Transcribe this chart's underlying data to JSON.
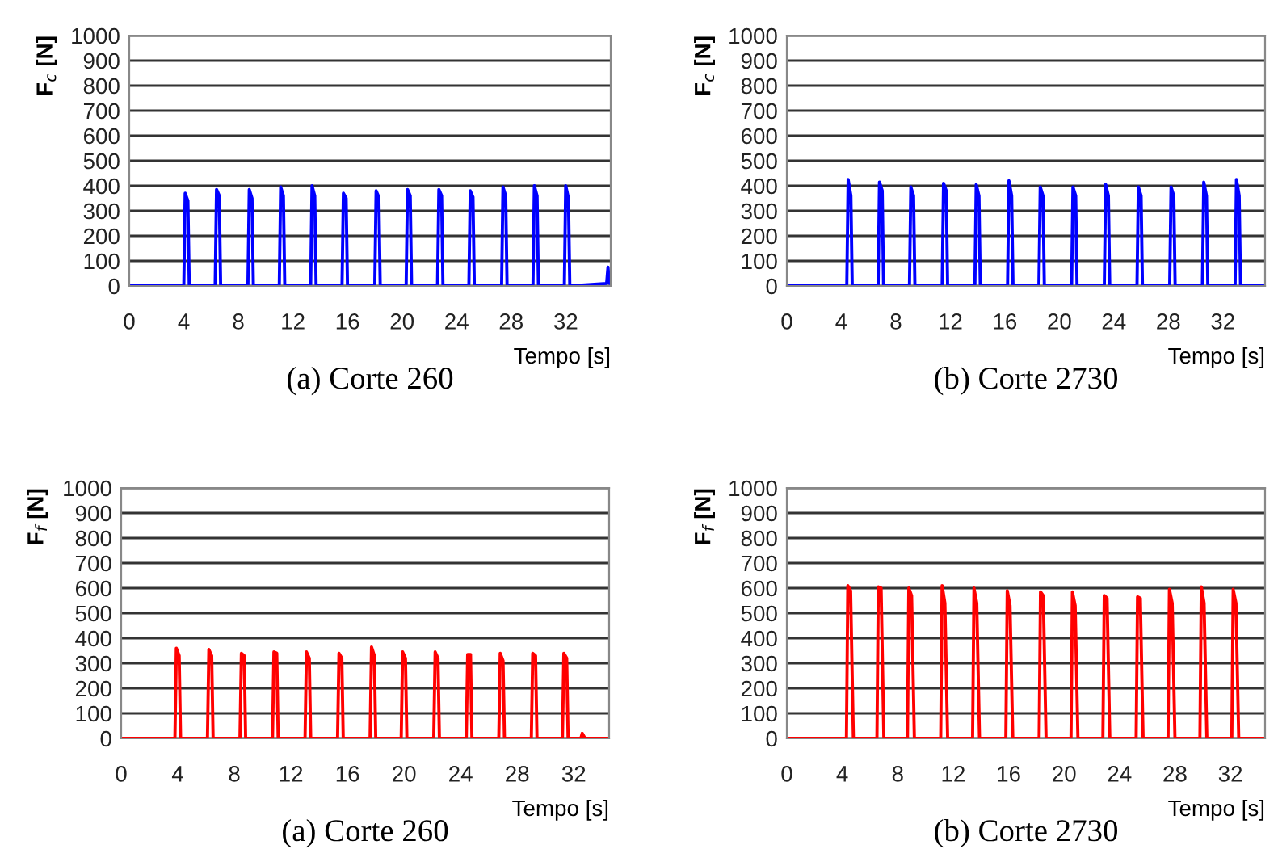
{
  "chart_data": [
    {
      "type": "line",
      "title": "(a) Corte 260",
      "xlabel": "Tempo [s]",
      "ylabel": "F$_{c}$ [N]",
      "xlim": [
        0,
        35.3
      ],
      "xticks": [
        0,
        4,
        8,
        12,
        16,
        20,
        24,
        28,
        32
      ],
      "ylim": [
        0,
        1000
      ],
      "yticks": [
        0,
        100,
        200,
        300,
        400,
        500,
        600,
        700,
        800,
        900,
        1000
      ],
      "grid": "y",
      "series": [
        {
          "color": "#0000ff",
          "x": [
            0,
            4.0,
            4.1,
            4.3,
            4.4,
            6.3,
            6.4,
            6.6,
            6.7,
            8.7,
            8.8,
            9.0,
            9.1,
            11.0,
            11.1,
            11.3,
            11.4,
            13.3,
            13.4,
            13.6,
            13.7,
            15.6,
            15.7,
            15.9,
            16.0,
            18.0,
            18.1,
            18.3,
            18.4,
            20.3,
            20.4,
            20.6,
            20.7,
            22.6,
            22.7,
            22.9,
            23.0,
            24.9,
            25.0,
            25.2,
            25.3,
            27.3,
            27.4,
            27.6,
            27.7,
            29.6,
            29.7,
            29.9,
            30.0,
            31.9,
            32.0,
            32.2,
            32.3,
            35.0,
            35.1,
            35.2,
            35.3
          ],
          "values": [
            0,
            0,
            370,
            340,
            0,
            0,
            385,
            360,
            0,
            0,
            385,
            350,
            0,
            0,
            395,
            360,
            0,
            0,
            400,
            360,
            0,
            0,
            370,
            350,
            0,
            0,
            380,
            355,
            0,
            0,
            385,
            360,
            0,
            0,
            385,
            360,
            0,
            0,
            380,
            355,
            0,
            0,
            395,
            360,
            0,
            0,
            400,
            360,
            0,
            0,
            400,
            350,
            0,
            10,
            75,
            10,
            30
          ]
        }
      ]
    },
    {
      "type": "line",
      "title": "(b) Corte 2730",
      "xlabel": "Tempo [s]",
      "ylabel": "F$_{c}$ [N]",
      "xlim": [
        0,
        35.1
      ],
      "xticks": [
        0,
        4,
        8,
        12,
        16,
        20,
        24,
        28,
        32
      ],
      "ylim": [
        0,
        1000
      ],
      "yticks": [
        0,
        100,
        200,
        300,
        400,
        500,
        600,
        700,
        800,
        900,
        1000
      ],
      "grid": "y",
      "series": [
        {
          "color": "#0000ff",
          "x": [
            0,
            4.4,
            4.5,
            4.7,
            4.8,
            6.7,
            6.8,
            7.0,
            7.1,
            9.0,
            9.1,
            9.3,
            9.4,
            11.4,
            11.5,
            11.7,
            11.8,
            13.8,
            13.9,
            14.1,
            14.2,
            16.2,
            16.3,
            16.5,
            16.6,
            18.5,
            18.6,
            18.8,
            18.9,
            20.9,
            21.0,
            21.2,
            21.3,
            23.3,
            23.4,
            23.6,
            23.7,
            25.7,
            25.8,
            26.0,
            26.1,
            28.1,
            28.2,
            28.4,
            28.5,
            30.5,
            30.6,
            30.8,
            30.9,
            32.9,
            33.0,
            33.2,
            33.3,
            35.1
          ],
          "values": [
            0,
            0,
            425,
            360,
            0,
            0,
            415,
            380,
            0,
            0,
            395,
            360,
            0,
            0,
            410,
            380,
            0,
            0,
            405,
            360,
            0,
            0,
            420,
            360,
            0,
            0,
            395,
            360,
            0,
            0,
            395,
            360,
            0,
            0,
            405,
            360,
            0,
            0,
            395,
            360,
            0,
            0,
            395,
            360,
            0,
            0,
            415,
            360,
            0,
            0,
            425,
            360,
            0,
            0
          ]
        }
      ]
    },
    {
      "type": "line",
      "title": "(a) Corte 260",
      "xlabel": "Tempo [s]",
      "ylabel": "F$_{f}$ [N]",
      "xlim": [
        0,
        34.5
      ],
      "xticks": [
        0,
        4,
        8,
        12,
        16,
        20,
        24,
        28,
        32
      ],
      "ylim": [
        0,
        1000
      ],
      "yticks": [
        0,
        100,
        200,
        300,
        400,
        500,
        600,
        700,
        800,
        900,
        1000
      ],
      "grid": "y",
      "series": [
        {
          "color": "#ff0000",
          "x": [
            0,
            3.8,
            3.9,
            4.1,
            4.2,
            6.1,
            6.2,
            6.4,
            6.5,
            8.4,
            8.5,
            8.7,
            8.8,
            10.7,
            10.8,
            11.0,
            11.1,
            13.0,
            13.1,
            13.3,
            13.4,
            15.3,
            15.4,
            15.6,
            15.7,
            17.6,
            17.7,
            17.9,
            18.0,
            19.8,
            19.9,
            20.1,
            20.2,
            22.1,
            22.2,
            22.4,
            22.5,
            24.4,
            24.5,
            24.7,
            24.8,
            26.7,
            26.8,
            27.0,
            27.1,
            29.0,
            29.1,
            29.3,
            29.4,
            31.2,
            31.3,
            31.5,
            31.6,
            32.5,
            32.6,
            32.8,
            34.5
          ],
          "values": [
            0,
            0,
            360,
            330,
            0,
            0,
            355,
            330,
            0,
            0,
            340,
            330,
            0,
            0,
            345,
            340,
            0,
            0,
            345,
            320,
            0,
            0,
            340,
            320,
            0,
            0,
            365,
            330,
            0,
            0,
            345,
            320,
            0,
            0,
            345,
            320,
            0,
            0,
            335,
            335,
            0,
            0,
            340,
            310,
            0,
            0,
            340,
            330,
            0,
            0,
            340,
            320,
            0,
            0,
            20,
            0,
            0
          ]
        }
      ]
    },
    {
      "type": "line",
      "title": "(b) Corte 2730",
      "xlabel": "Tempo [s]",
      "ylabel": "F$_{f}$ [N]",
      "xlim": [
        0,
        34.5
      ],
      "xticks": [
        0,
        4,
        8,
        12,
        16,
        20,
        24,
        28,
        32
      ],
      "ylim": [
        0,
        1000
      ],
      "yticks": [
        0,
        100,
        200,
        300,
        400,
        500,
        600,
        700,
        800,
        900,
        1000
      ],
      "grid": "y",
      "series": [
        {
          "color": "#ff0000",
          "x": [
            0,
            4.3,
            4.4,
            4.6,
            4.8,
            6.5,
            6.6,
            6.8,
            7.0,
            8.7,
            8.8,
            9.0,
            9.2,
            11.1,
            11.2,
            11.4,
            11.6,
            13.4,
            13.5,
            13.7,
            13.9,
            15.8,
            15.9,
            16.1,
            16.3,
            18.2,
            18.3,
            18.5,
            18.7,
            20.5,
            20.6,
            20.8,
            21.0,
            22.8,
            22.9,
            23.1,
            23.3,
            25.2,
            25.3,
            25.5,
            25.7,
            27.5,
            27.6,
            27.8,
            28.0,
            29.8,
            29.9,
            30.1,
            30.3,
            32.1,
            32.2,
            32.4,
            32.6,
            34.5
          ],
          "values": [
            0,
            0,
            610,
            590,
            0,
            0,
            605,
            600,
            0,
            0,
            600,
            570,
            0,
            0,
            610,
            540,
            0,
            0,
            600,
            540,
            0,
            0,
            590,
            530,
            0,
            0,
            585,
            570,
            0,
            0,
            585,
            530,
            0,
            0,
            570,
            560,
            0,
            0,
            565,
            560,
            0,
            0,
            595,
            540,
            0,
            0,
            605,
            540,
            0,
            0,
            595,
            540,
            0,
            0
          ]
        }
      ]
    }
  ]
}
